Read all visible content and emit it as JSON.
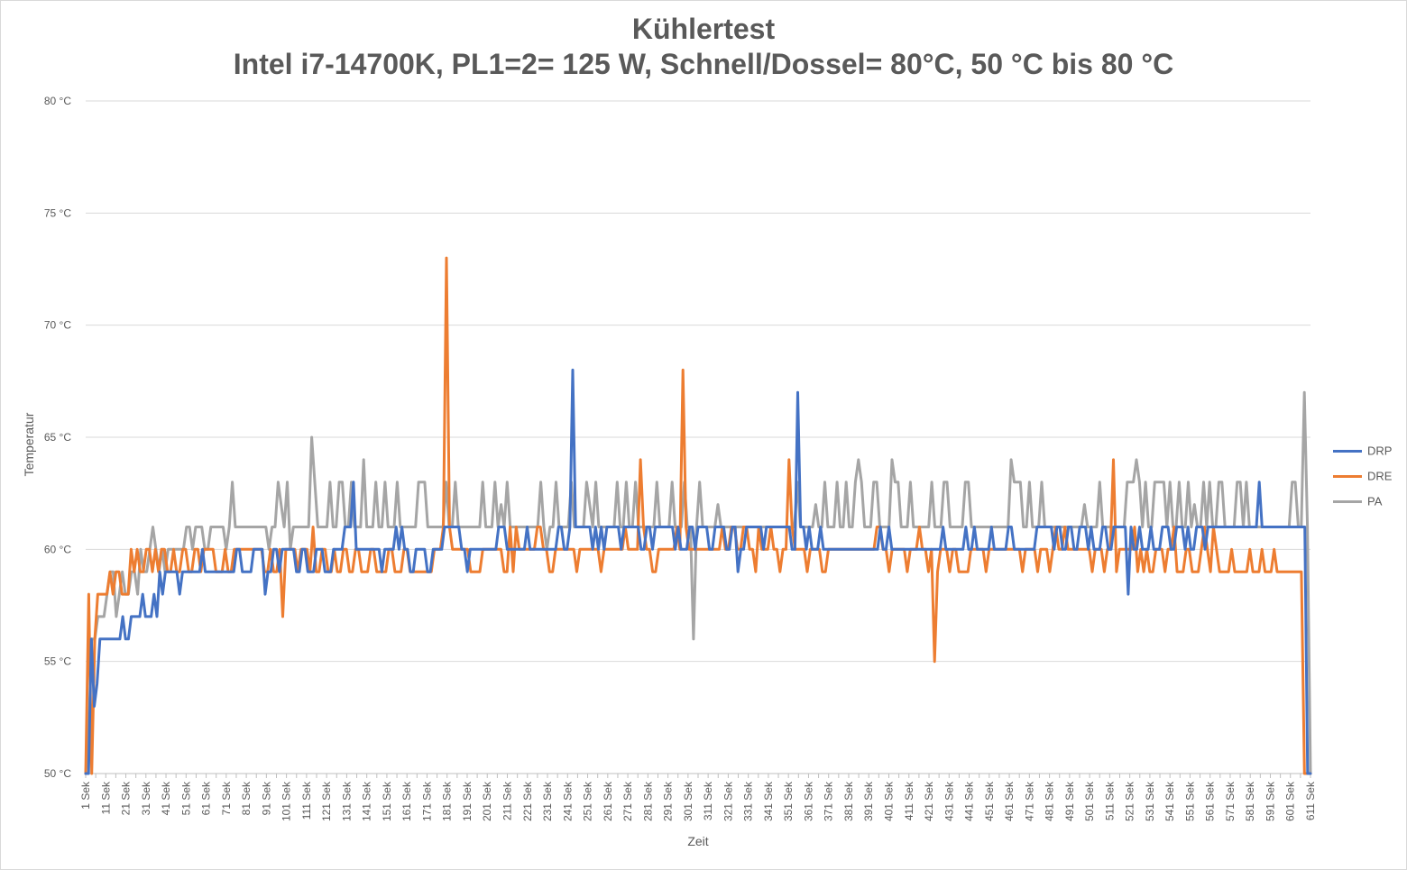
{
  "chart_data": {
    "type": "line",
    "title": "Kühlertest",
    "subtitle": "Intel i7-14700K, PL1=2= 125 W, Schnell/Dossel= 80°C, 50 °C bis 80 °C",
    "xlabel": "Zeit",
    "ylabel": "Temperatur",
    "ylim": [
      50,
      80
    ],
    "yticks": [
      50,
      55,
      60,
      65,
      70,
      75,
      80
    ],
    "ytick_labels": [
      "50 °C",
      "55 °C",
      "60 °C",
      "65 °C",
      "70 °C",
      "75 °C",
      "80 °C"
    ],
    "x_start": 1,
    "x_end": 611,
    "x_tick_step": 5,
    "x_label_step": 10,
    "x_unit": "Sek",
    "grid": "horizontal",
    "legend_position": "right",
    "series": [
      {
        "name": "DRP",
        "color": "#4472c4",
        "values": [
          50,
          50,
          56,
          53,
          54,
          56,
          56,
          56,
          56,
          56,
          56,
          56,
          56,
          57,
          56,
          56,
          57,
          57,
          57,
          57,
          58,
          57,
          57,
          57,
          58,
          57,
          59,
          58,
          59,
          59,
          59,
          59,
          59,
          58,
          59,
          59,
          59,
          59,
          59,
          59,
          59,
          60,
          59,
          59,
          59,
          59,
          59,
          59,
          59,
          59,
          59,
          59,
          59,
          60,
          60,
          59,
          59,
          59,
          59,
          60,
          60,
          60,
          60,
          58,
          59,
          59,
          60,
          60,
          59,
          60,
          60,
          60,
          60,
          60,
          59,
          59,
          60,
          60,
          59,
          59,
          59,
          60,
          60,
          60,
          59,
          59,
          59,
          60,
          60,
          60,
          60,
          61,
          61,
          61,
          63,
          60,
          60,
          60,
          60,
          60,
          60,
          60,
          60,
          60,
          59,
          60,
          60,
          60,
          60,
          61,
          60,
          61,
          60,
          60,
          59,
          59,
          60,
          60,
          60,
          60,
          59,
          59,
          60,
          60,
          60,
          60,
          61,
          61,
          61,
          61,
          61,
          61,
          60,
          60,
          59,
          60,
          60,
          60,
          60,
          60,
          60,
          60,
          60,
          60,
          60,
          61,
          61,
          61,
          60,
          60,
          60,
          60,
          60,
          60,
          60,
          61,
          60,
          60,
          60,
          60,
          60,
          60,
          60,
          60,
          60,
          60,
          61,
          61,
          60,
          60,
          61,
          68,
          61,
          61,
          61,
          61,
          61,
          61,
          60,
          61,
          60,
          61,
          60,
          61,
          61,
          61,
          61,
          61,
          60,
          61,
          61,
          61,
          61,
          61,
          61,
          60,
          60,
          61,
          61,
          60,
          61,
          61,
          61,
          61,
          61,
          61,
          61,
          60,
          61,
          60,
          60,
          60,
          61,
          61,
          60,
          61,
          61,
          61,
          61,
          60,
          60,
          61,
          61,
          61,
          61,
          60,
          60,
          61,
          61,
          59,
          60,
          60,
          61,
          61,
          61,
          61,
          61,
          61,
          60,
          61,
          61,
          61,
          61,
          61,
          61,
          61,
          61,
          61,
          60,
          60,
          67,
          61,
          61,
          60,
          61,
          60,
          60,
          60,
          61,
          60,
          60,
          60,
          60,
          60,
          60,
          60,
          60,
          60,
          60,
          60,
          60,
          60,
          60,
          60,
          60,
          60,
          60,
          60,
          60,
          61,
          60,
          60,
          61,
          60,
          60,
          60,
          60,
          60,
          60,
          60,
          60,
          60,
          60,
          60,
          60,
          60,
          60,
          60,
          60,
          60,
          60,
          61,
          60,
          60,
          60,
          60,
          60,
          60,
          60,
          61,
          60,
          60,
          61,
          60,
          60,
          60,
          60,
          60,
          61,
          60,
          60,
          60,
          60,
          60,
          61,
          61,
          60,
          60,
          60,
          60,
          60,
          60,
          60,
          60,
          61,
          61,
          61,
          61,
          61,
          61,
          60,
          61,
          61,
          60,
          60,
          61,
          61,
          60,
          60,
          61,
          61,
          61,
          60,
          61,
          60,
          60,
          60,
          61,
          61,
          60,
          60,
          61,
          61,
          61,
          61,
          61,
          58,
          61,
          60,
          60,
          61,
          60,
          60,
          60,
          61,
          60,
          60,
          60,
          61,
          61,
          61,
          60,
          60,
          61,
          61,
          61,
          60,
          61,
          60,
          60,
          61,
          61,
          61,
          60,
          61,
          61,
          61,
          61,
          61,
          61,
          61,
          61,
          61,
          61,
          61,
          61,
          61,
          61,
          61,
          61,
          61,
          61,
          63,
          61,
          61,
          61,
          61,
          61,
          61,
          61,
          61,
          61,
          61,
          61,
          61,
          61,
          61,
          61,
          61,
          50,
          50
        ],
        "note_points": 0
      },
      {
        "name": "DRE",
        "color": "#ed7d31",
        "values": [
          50,
          58,
          50,
          56,
          58,
          58,
          58,
          58,
          59,
          58,
          59,
          59,
          58,
          58,
          58,
          60,
          59,
          60,
          59,
          59,
          60,
          60,
          59,
          60,
          59,
          60,
          60,
          59,
          59,
          60,
          59,
          59,
          60,
          60,
          59,
          59,
          60,
          60,
          59,
          60,
          60,
          60,
          60,
          59,
          59,
          59,
          60,
          59,
          59,
          60,
          60,
          60,
          60,
          60,
          60,
          60,
          60,
          60,
          60,
          59,
          59,
          60,
          59,
          59,
          60,
          57,
          60,
          60,
          60,
          60,
          59,
          60,
          60,
          60,
          59,
          61,
          59,
          59,
          60,
          60,
          59,
          59,
          60,
          59,
          59,
          60,
          60,
          59,
          59,
          60,
          60,
          59,
          59,
          59,
          60,
          60,
          59,
          59,
          59,
          59,
          60,
          60,
          59,
          59,
          59,
          60,
          60,
          59,
          59,
          59,
          59,
          59,
          59,
          59,
          59,
          60,
          60,
          60,
          61,
          73,
          61,
          60,
          60,
          60,
          60,
          60,
          60,
          59,
          59,
          59,
          59,
          60,
          60,
          60,
          60,
          60,
          60,
          60,
          59,
          59,
          61,
          59,
          61,
          60,
          60,
          60,
          60,
          60,
          60,
          61,
          61,
          60,
          60,
          59,
          59,
          60,
          60,
          60,
          60,
          60,
          60,
          60,
          59,
          60,
          60,
          60,
          60,
          60,
          60,
          60,
          59,
          60,
          60,
          60,
          60,
          60,
          60,
          60,
          61,
          60,
          60,
          60,
          60,
          64,
          61,
          60,
          60,
          59,
          59,
          60,
          60,
          60,
          60,
          60,
          60,
          61,
          60,
          68,
          61,
          60,
          60,
          60,
          60,
          60,
          60,
          60,
          60,
          60,
          60,
          60,
          61,
          60,
          60,
          61,
          61,
          60,
          60,
          61,
          61,
          60,
          60,
          59,
          61,
          60,
          60,
          60,
          61,
          60,
          60,
          59,
          60,
          60,
          64,
          61,
          60,
          60,
          60,
          60,
          59,
          60,
          60,
          60,
          60,
          59,
          59,
          60,
          60,
          60,
          60,
          60,
          60,
          60,
          60,
          60,
          60,
          60,
          60,
          60,
          60,
          60,
          60,
          61,
          61,
          60,
          60,
          59,
          60,
          60,
          60,
          60,
          60,
          59,
          60,
          60,
          60,
          61,
          60,
          60,
          59,
          60,
          55,
          59,
          60,
          60,
          60,
          59,
          60,
          60,
          59,
          59,
          59,
          59,
          60,
          60,
          60,
          60,
          60,
          59,
          60,
          60,
          60,
          60,
          60,
          60,
          60,
          60,
          60,
          60,
          60,
          59,
          60,
          60,
          60,
          60,
          59,
          60,
          60,
          60,
          59,
          60,
          61,
          60,
          60,
          61,
          60,
          60,
          60,
          60,
          60,
          60,
          60,
          60,
          59,
          60,
          60,
          60,
          59,
          60,
          60,
          64,
          59,
          60,
          60,
          60,
          60,
          60,
          61,
          59,
          60,
          59,
          60,
          59,
          59,
          60,
          60,
          60,
          59,
          60,
          60,
          61,
          59,
          59,
          59,
          60,
          60,
          59,
          59,
          59,
          60,
          61,
          60,
          59,
          61,
          60,
          59,
          59,
          59,
          59,
          60,
          59,
          59,
          59,
          59,
          59,
          60,
          59,
          59,
          59,
          60,
          59,
          59,
          59,
          60,
          59,
          59,
          59,
          59,
          59,
          59,
          59,
          59,
          59,
          50,
          50,
          50
        ],
        "note_points": 0
      },
      {
        "name": "PA",
        "color": "#a5a5a5",
        "values": [
          50,
          52,
          56,
          56,
          57,
          57,
          57,
          58,
          59,
          59,
          57,
          58,
          59,
          58,
          58,
          59,
          59,
          58,
          60,
          59,
          59,
          60,
          61,
          60,
          59,
          60,
          59,
          60,
          60,
          60,
          60,
          60,
          60,
          61,
          61,
          60,
          61,
          61,
          61,
          60,
          60,
          61,
          61,
          61,
          61,
          61,
          60,
          61,
          63,
          61,
          61,
          61,
          61,
          61,
          61,
          61,
          61,
          61,
          61,
          61,
          60,
          61,
          61,
          63,
          62,
          61,
          63,
          60,
          61,
          61,
          61,
          61,
          61,
          61,
          65,
          63,
          61,
          61,
          61,
          61,
          63,
          61,
          61,
          63,
          63,
          61,
          61,
          63,
          61,
          61,
          61,
          64,
          61,
          61,
          61,
          63,
          61,
          61,
          63,
          61,
          61,
          61,
          63,
          61,
          61,
          61,
          61,
          61,
          61,
          63,
          63,
          63,
          61,
          61,
          61,
          61,
          61,
          61,
          63,
          61,
          61,
          63,
          61,
          61,
          61,
          61,
          61,
          61,
          61,
          61,
          63,
          61,
          61,
          61,
          63,
          61,
          62,
          61,
          63,
          61,
          61,
          61,
          61,
          61,
          61,
          61,
          61,
          61,
          61,
          63,
          61,
          60,
          61,
          61,
          63,
          61,
          61,
          61,
          61,
          63,
          61,
          61,
          61,
          61,
          63,
          62,
          61,
          63,
          61,
          61,
          61,
          61,
          61,
          61,
          63,
          61,
          61,
          63,
          61,
          61,
          63,
          61,
          61,
          61,
          61,
          61,
          61,
          63,
          61,
          61,
          61,
          61,
          63,
          61,
          61,
          61,
          63,
          61,
          61,
          56,
          61,
          63,
          61,
          61,
          61,
          61,
          61,
          62,
          61,
          61,
          61,
          61,
          61,
          61,
          61,
          61,
          61,
          61,
          61,
          61,
          61,
          61,
          61,
          61,
          61,
          61,
          61,
          61,
          61,
          61,
          61,
          61,
          61,
          63,
          61,
          61,
          61,
          61,
          61,
          62,
          61,
          61,
          63,
          61,
          61,
          61,
          63,
          61,
          61,
          63,
          61,
          61,
          63,
          64,
          63,
          61,
          61,
          61,
          63,
          63,
          61,
          61,
          61,
          61,
          64,
          63,
          63,
          61,
          61,
          61,
          63,
          61,
          61,
          61,
          61,
          61,
          61,
          63,
          61,
          61,
          61,
          63,
          63,
          61,
          61,
          61,
          61,
          61,
          63,
          63,
          61,
          61,
          61,
          61,
          61,
          61,
          61,
          61,
          61,
          61,
          61,
          61,
          61,
          64,
          63,
          63,
          63,
          61,
          61,
          63,
          61,
          61,
          61,
          63,
          61,
          61,
          61,
          61,
          61,
          61,
          61,
          61,
          61,
          61,
          61,
          61,
          61,
          62,
          61,
          61,
          61,
          61,
          63,
          61,
          61,
          61,
          61,
          61,
          61,
          61,
          61,
          63,
          63,
          63,
          64,
          63,
          61,
          63,
          61,
          61,
          63,
          63,
          63,
          63,
          61,
          63,
          61,
          61,
          63,
          61,
          61,
          63,
          61,
          62,
          61,
          61,
          63,
          61,
          63,
          61,
          61,
          63,
          63,
          61,
          61,
          61,
          61,
          63,
          63,
          61,
          63,
          61,
          61,
          61,
          61,
          61,
          61,
          61,
          61,
          61,
          61,
          61,
          61,
          61,
          61,
          63,
          63,
          61,
          61,
          67,
          61,
          50
        ],
        "note_points": 0
      }
    ]
  }
}
